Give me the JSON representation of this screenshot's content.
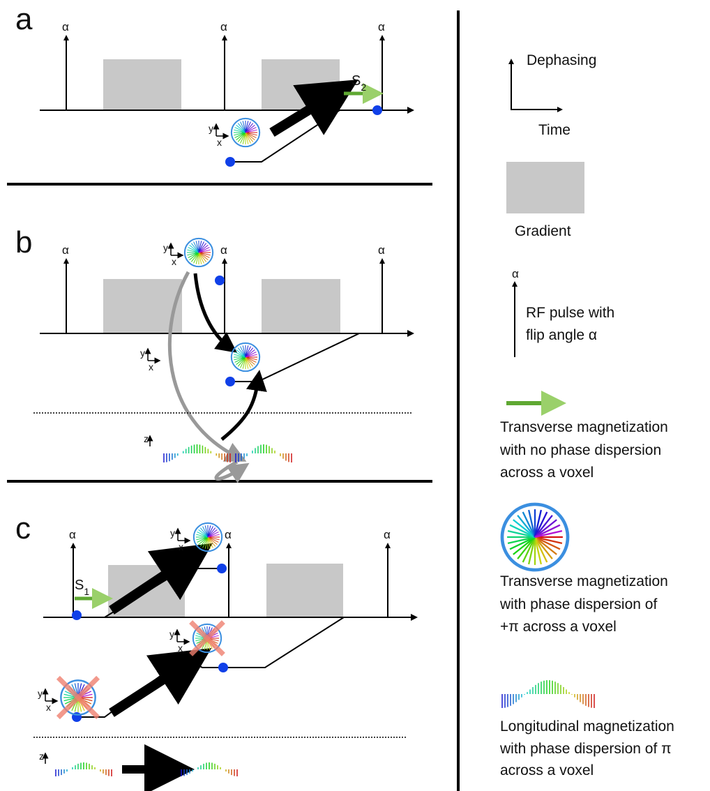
{
  "panel_a": {
    "label": "a",
    "pulses": [
      "α",
      "α",
      "α"
    ],
    "signal": "S",
    "signal_sub": "2",
    "axes": [
      {
        "y": "y",
        "x": "x"
      }
    ]
  },
  "panel_b": {
    "label": "b",
    "pulses": [
      "α",
      "α",
      "α"
    ],
    "axes": [
      {
        "y": "y",
        "x": "x"
      },
      {
        "y": "y",
        "x": "x"
      }
    ],
    "z_axis": "z"
  },
  "panel_c": {
    "label": "c",
    "pulses": [
      "α",
      "α",
      "α"
    ],
    "signal": "S",
    "signal_sub": "1",
    "axes": [
      {
        "y": "y",
        "x": "x"
      },
      {
        "y": "y",
        "x": "x"
      },
      {
        "y": "y",
        "x": "x"
      }
    ],
    "z_axis": "z"
  },
  "legend": {
    "dephasing": "Dephasing",
    "time": "Time",
    "gradient": "Gradient",
    "rf_symbol": "α",
    "rf_text": [
      "RF pulse with",
      "flip angle α"
    ],
    "transverse_no_dispersion": [
      "Transverse magnetization",
      "with no phase dispersion",
      "across a voxel"
    ],
    "transverse_dispersion": [
      "Transverse magnetization",
      "with phase dispersion of",
      "+π across a voxel"
    ],
    "longitudinal": [
      "Longitudinal magnetization",
      "with phase dispersion of π",
      "across a voxel"
    ]
  }
}
